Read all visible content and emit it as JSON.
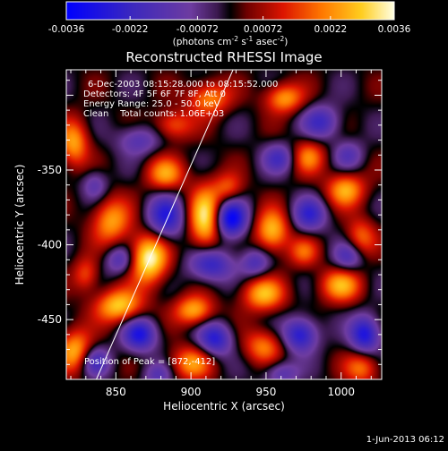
{
  "chart_data": {
    "type": "heatmap",
    "title": "Reconstructed RHESSI Image",
    "xlabel": "Heliocentric X (arcsec)",
    "ylabel": "Heliocentric Y (arcsec)",
    "xlim": [
      817,
      1027
    ],
    "ylim": [
      -490,
      -283
    ],
    "x_ticks": [
      850,
      900,
      950,
      1000
    ],
    "y_ticks": [
      -450,
      -400,
      -350
    ],
    "colorbar": {
      "min": -0.0036,
      "max": 0.0036,
      "ticks": [
        "-0.0036",
        "-0.0022",
        "-0.00072",
        "0.00072",
        "0.0022",
        "0.0036"
      ],
      "unit_parts": [
        "(photons cm",
        "-2",
        " s",
        "-1",
        " asec",
        "-2",
        ")"
      ]
    },
    "annotations": [
      "6-Dec-2003 08:15:28.000 to 08:15:52.000",
      "Detectors: 4F 5F 6F 7F 8F, Att 0",
      "Energy Range: 25.0 - 50.0 keV",
      "Clean    Total counts: 1.06E+03"
    ],
    "peak_text": "Position of Peak = [872,-412]",
    "limb_line": [
      [
        837,
        -490
      ],
      [
        928,
        -283
      ]
    ],
    "blobs": [
      {
        "x": 872,
        "y": -409,
        "v": 0.0036,
        "sx": 9,
        "sy": 12
      },
      {
        "x": 910,
        "y": -383,
        "v": 0.0034,
        "sx": 8,
        "sy": 15
      },
      {
        "x": 852,
        "y": -441,
        "v": 0.0029,
        "sx": 11,
        "sy": 8
      },
      {
        "x": 847,
        "y": -384,
        "v": 0.0024,
        "sx": 9,
        "sy": 11
      },
      {
        "x": 954,
        "y": -391,
        "v": 0.0028,
        "sx": 8,
        "sy": 10
      },
      {
        "x": 948,
        "y": -433,
        "v": 0.0026,
        "sx": 10,
        "sy": 8
      },
      {
        "x": 1003,
        "y": -363,
        "v": 0.0025,
        "sx": 9,
        "sy": 8
      },
      {
        "x": 1000,
        "y": -427,
        "v": 0.0024,
        "sx": 10,
        "sy": 8
      },
      {
        "x": 902,
        "y": -444,
        "v": 0.0026,
        "sx": 9,
        "sy": 7
      },
      {
        "x": 883,
        "y": -353,
        "v": 0.0023,
        "sx": 9,
        "sy": 8
      },
      {
        "x": 900,
        "y": -479,
        "v": 0.0022,
        "sx": 10,
        "sy": 8
      },
      {
        "x": 948,
        "y": -468,
        "v": 0.002,
        "sx": 9,
        "sy": 8
      },
      {
        "x": 823,
        "y": -471,
        "v": 0.0026,
        "sx": 8,
        "sy": 10
      },
      {
        "x": 822,
        "y": -332,
        "v": 0.0024,
        "sx": 7,
        "sy": 11
      },
      {
        "x": 912,
        "y": -302,
        "v": 0.0022,
        "sx": 10,
        "sy": 8
      },
      {
        "x": 962,
        "y": -302,
        "v": 0.0024,
        "sx": 9,
        "sy": 7
      },
      {
        "x": 978,
        "y": -341,
        "v": 0.002,
        "sx": 8,
        "sy": 8
      },
      {
        "x": 1013,
        "y": -395,
        "v": 0.0018,
        "sx": 7,
        "sy": 9
      },
      {
        "x": 1014,
        "y": -482,
        "v": 0.002,
        "sx": 8,
        "sy": 8
      },
      {
        "x": 975,
        "y": -405,
        "v": 0.0016,
        "sx": 7,
        "sy": 7
      },
      {
        "x": 888,
        "y": -320,
        "v": 0.0018,
        "sx": 9,
        "sy": 7
      },
      {
        "x": 830,
        "y": -420,
        "v": 0.0016,
        "sx": 6,
        "sy": 8
      },
      {
        "x": 925,
        "y": -362,
        "v": 0.0016,
        "sx": 7,
        "sy": 7
      },
      {
        "x": 926,
        "y": -383,
        "v": -0.0036,
        "sx": 8,
        "sy": 9
      },
      {
        "x": 883,
        "y": -382,
        "v": -0.0026,
        "sx": 9,
        "sy": 11
      },
      {
        "x": 913,
        "y": -413,
        "v": -0.0026,
        "sx": 10,
        "sy": 8
      },
      {
        "x": 866,
        "y": -460,
        "v": -0.0028,
        "sx": 8,
        "sy": 8
      },
      {
        "x": 916,
        "y": -463,
        "v": -0.0026,
        "sx": 8,
        "sy": 8
      },
      {
        "x": 973,
        "y": -460,
        "v": -0.0028,
        "sx": 8,
        "sy": 8
      },
      {
        "x": 1016,
        "y": -460,
        "v": -0.003,
        "sx": 7,
        "sy": 9
      },
      {
        "x": 853,
        "y": -410,
        "v": -0.0018,
        "sx": 7,
        "sy": 7
      },
      {
        "x": 979,
        "y": -380,
        "v": -0.0022,
        "sx": 8,
        "sy": 8
      },
      {
        "x": 1005,
        "y": -408,
        "v": -0.0018,
        "sx": 7,
        "sy": 7
      },
      {
        "x": 836,
        "y": -478,
        "v": -0.002,
        "sx": 7,
        "sy": 7
      },
      {
        "x": 959,
        "y": -342,
        "v": -0.0018,
        "sx": 8,
        "sy": 7
      },
      {
        "x": 987,
        "y": -318,
        "v": -0.002,
        "sx": 9,
        "sy": 8
      },
      {
        "x": 865,
        "y": -330,
        "v": -0.0016,
        "sx": 10,
        "sy": 7
      },
      {
        "x": 943,
        "y": -412,
        "v": -0.0018,
        "sx": 7,
        "sy": 7
      },
      {
        "x": 1005,
        "y": -340,
        "v": -0.0014,
        "sx": 7,
        "sy": 7
      },
      {
        "x": 836,
        "y": -360,
        "v": -0.0014,
        "sx": 6,
        "sy": 7
      },
      {
        "x": 960,
        "y": -486,
        "v": -0.0016,
        "sx": 8,
        "sy": 6
      },
      {
        "x": 878,
        "y": -487,
        "v": -0.0014,
        "sx": 7,
        "sy": 6
      }
    ]
  },
  "footer": {
    "timestamp": "1-Jun-2013 06:12"
  }
}
